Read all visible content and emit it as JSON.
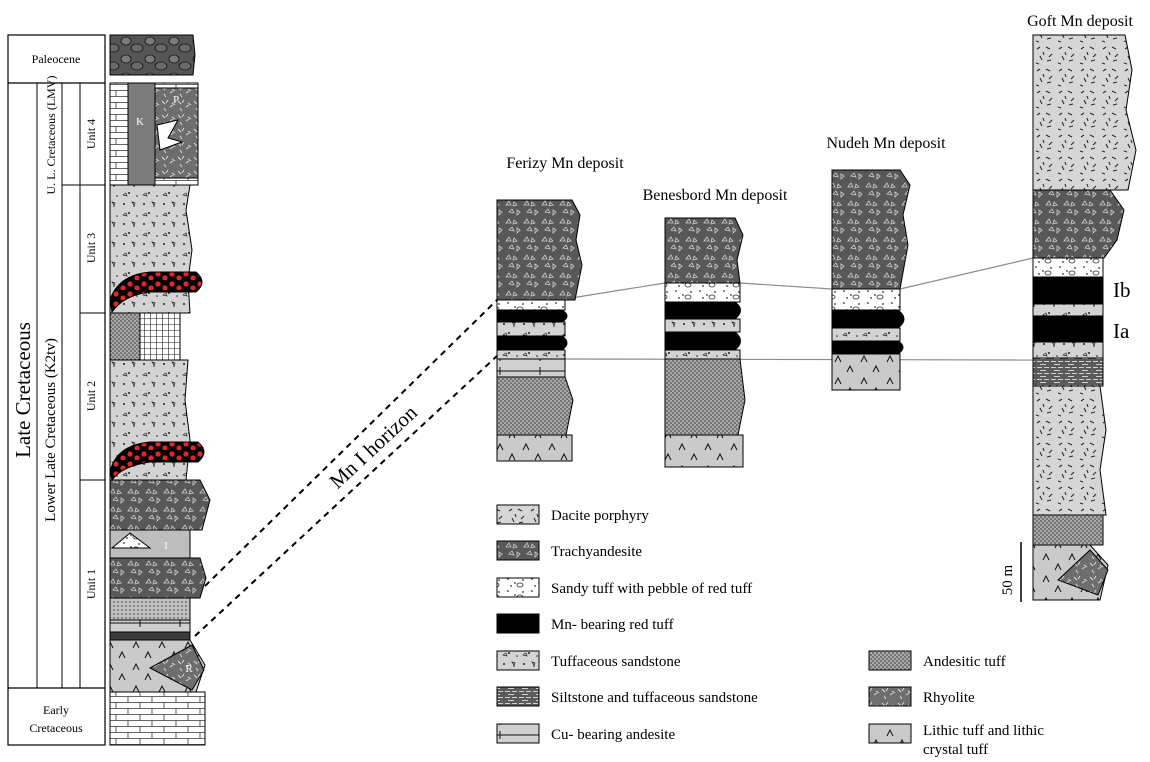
{
  "stratigraphy": {
    "periods": {
      "paleocene": "Paleocene",
      "late_cretaceous": "Late  Cretaceous",
      "early_cretaceous": "Early Cretaceous"
    },
    "formations": {
      "ul_cretaceous": "U. L. Cretaceous (LMV)",
      "lower_late_cretaceous": "Lower  Late  Cretaceous  (K2tv)"
    },
    "units": [
      "Unit 4",
      "Unit 3",
      "Unit 2",
      "Unit 1"
    ],
    "symbols": [
      "K",
      "P",
      "I",
      "R"
    ]
  },
  "correlation": {
    "horizon_label": "Mn I horizon",
    "columns": [
      "Ferizy Mn deposit",
      "Benesbord Mn deposit",
      "Nudeh Mn deposit",
      "Goft Mn deposit"
    ],
    "layer_labels": [
      "Ib",
      "Ia"
    ],
    "scale_label": "50 m"
  },
  "legend": {
    "left": [
      {
        "id": "dacite",
        "label": "Dacite porphyry"
      },
      {
        "id": "trachy",
        "label": "Trachyandesite"
      },
      {
        "id": "sandy",
        "label": "Sandy tuff with pebble of red tuff"
      },
      {
        "id": "mn",
        "label": "Mn- bearing red tuff"
      },
      {
        "id": "tuffsand",
        "label": "Tuffaceous sandstone"
      },
      {
        "id": "silt",
        "label": "Siltstone and tuffaceous sandstone"
      },
      {
        "id": "cu",
        "label": "Cu- bearing andesite"
      }
    ],
    "right": [
      {
        "id": "andtuff",
        "label": "Andesitic tuff"
      },
      {
        "id": "rhyolite",
        "label": "Rhyolite"
      },
      {
        "id": "lithic",
        "label": "Lithic tuff and lithic crystal tuff"
      }
    ]
  },
  "colors": {
    "grey": "#cfcfcf",
    "dark": "#4a4a4a",
    "mn": "#000000",
    "red_dot": "#e3262a"
  }
}
